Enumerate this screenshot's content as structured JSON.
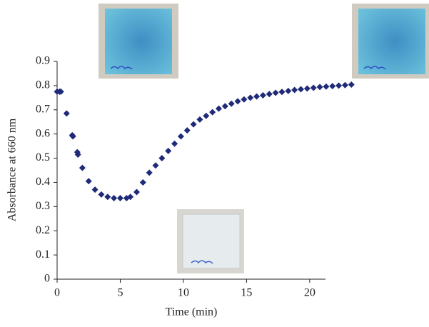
{
  "chart_data": {
    "type": "scatter",
    "xlabel": "Time (min)",
    "ylabel": "Absorbance at 660 nm",
    "color": "#1f2a78",
    "xlim": [
      0,
      21.25
    ],
    "xticks": [
      0,
      5,
      10,
      15,
      20
    ],
    "ylim": [
      0,
      0.9
    ],
    "yticks": [
      0,
      0.1,
      0.2,
      0.3,
      0.4,
      0.5,
      0.6,
      0.7,
      0.8,
      0.9
    ],
    "grid": false,
    "x": [
      0,
      0.2,
      0.3,
      0.75,
      1.2,
      1.25,
      1.6,
      1.65,
      2,
      2.5,
      3,
      3.5,
      4,
      4.5,
      5,
      5.5,
      5.8,
      6.3,
      6.8,
      7.3,
      7.8,
      8.3,
      8.8,
      9.3,
      9.8,
      10.3,
      10.8,
      11.3,
      11.8,
      12.3,
      12.8,
      13.3,
      13.8,
      14.3,
      14.8,
      15.3,
      15.8,
      16.3,
      16.8,
      17.3,
      17.8,
      18.3,
      18.8,
      19.3,
      19.8,
      20.3,
      20.8,
      21.3,
      21.8,
      22.3,
      22.8,
      23.3
    ],
    "values": [
      0.775,
      0.775,
      0.775,
      0.685,
      0.595,
      0.59,
      0.525,
      0.515,
      0.46,
      0.405,
      0.37,
      0.35,
      0.34,
      0.335,
      0.335,
      0.335,
      0.34,
      0.36,
      0.4,
      0.44,
      0.47,
      0.5,
      0.53,
      0.56,
      0.59,
      0.615,
      0.64,
      0.66,
      0.675,
      0.69,
      0.705,
      0.715,
      0.725,
      0.735,
      0.743,
      0.75,
      0.755,
      0.76,
      0.765,
      0.77,
      0.774,
      0.778,
      0.782,
      0.785,
      0.788,
      0.791,
      0.794,
      0.796,
      0.798,
      0.8,
      0.802,
      0.804
    ]
  }
}
